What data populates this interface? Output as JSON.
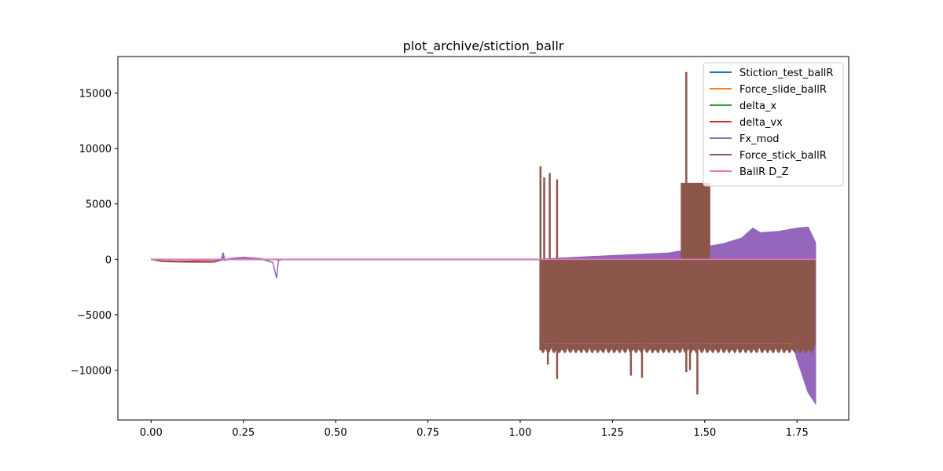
{
  "chart_data": {
    "type": "line",
    "title": "plot_archive/stiction_ballr",
    "xlabel": "",
    "ylabel": "",
    "xlim": [
      -0.09,
      1.89
    ],
    "ylim": [
      -14500,
      18300
    ],
    "xticks": [
      0.0,
      0.25,
      0.5,
      0.75,
      1.0,
      1.25,
      1.5,
      1.75
    ],
    "xtick_labels": [
      "0.00",
      "0.25",
      "0.50",
      "0.75",
      "1.00",
      "1.25",
      "1.50",
      "1.75"
    ],
    "yticks": [
      -10000,
      -5000,
      0,
      5000,
      10000,
      15000
    ],
    "ytick_labels": [
      "−10000",
      "−5000",
      "0",
      "5000",
      "10000",
      "15000"
    ],
    "legend_position": "top-right",
    "grid": false,
    "series": [
      {
        "name": "Stiction_test_ballR",
        "color": "#1f77b4",
        "x": [
          0.0,
          1.8
        ],
        "y": [
          0,
          0
        ]
      },
      {
        "name": "Force_slide_ballR",
        "color": "#ff7f0e",
        "x": [
          0.0,
          1.8
        ],
        "y": [
          0,
          0
        ]
      },
      {
        "name": "delta_x",
        "color": "#2ca02c",
        "x": [
          0.0,
          1.8
        ],
        "y": [
          0,
          0
        ]
      },
      {
        "name": "delta_vx",
        "color": "#d62728",
        "x": [
          0.0,
          0.03,
          0.08,
          0.12,
          0.17,
          0.2,
          1.8
        ],
        "y": [
          0,
          -150,
          -180,
          -160,
          -200,
          0,
          0
        ]
      },
      {
        "name": "Fx_mod",
        "color": "#9467bd",
        "x": [
          0.0,
          0.19,
          0.195,
          0.2,
          0.21,
          0.25,
          0.3,
          0.33,
          0.34,
          0.345,
          0.36,
          1.05,
          1.2,
          1.4,
          1.55,
          1.6,
          1.63,
          1.65,
          1.7,
          1.75,
          1.78,
          1.8
        ],
        "y": [
          0,
          -60,
          600,
          -80,
          50,
          180,
          50,
          -300,
          -1700,
          -100,
          0,
          0,
          250,
          550,
          1400,
          1900,
          2800,
          2400,
          2500,
          2800,
          2900,
          1500
        ],
        "lower": [
          0,
          -60,
          0,
          -80,
          0,
          0,
          0,
          -300,
          -1700,
          -100,
          0,
          0,
          -200,
          -300,
          -400,
          -500,
          -700,
          -1200,
          -2000,
          -9000,
          -12000,
          -13000
        ]
      },
      {
        "name": "Force_stick_ballR",
        "color": "#8c564b",
        "x": [
          0.0,
          0.03,
          0.1,
          0.17,
          0.2,
          1.05
        ],
        "y": [
          0,
          -200,
          -250,
          -250,
          0,
          0
        ],
        "band": {
          "x0": 1.052,
          "x1": 1.8,
          "top": 0,
          "bottom": -7600
        },
        "spikes_up": [
          {
            "x": 1.055,
            "y": 8400
          },
          {
            "x": 1.065,
            "y": 7400
          },
          {
            "x": 1.08,
            "y": 7800
          },
          {
            "x": 1.1,
            "y": 7200
          },
          {
            "x": 1.44,
            "y": 6900
          },
          {
            "x": 1.45,
            "y": 16900
          },
          {
            "x": 1.46,
            "y": 6900
          },
          {
            "x": 1.47,
            "y": 6900
          },
          {
            "x": 1.48,
            "y": 6900
          },
          {
            "x": 1.5,
            "y": 6800
          },
          {
            "x": 1.51,
            "y": 6800
          }
        ],
        "spikes_down": [
          {
            "x": 1.055,
            "y": -8000
          },
          {
            "x": 1.075,
            "y": -9500
          },
          {
            "x": 1.1,
            "y": -10800
          },
          {
            "x": 1.3,
            "y": -10500
          },
          {
            "x": 1.33,
            "y": -10700
          },
          {
            "x": 1.45,
            "y": -10200
          },
          {
            "x": 1.46,
            "y": -10000
          },
          {
            "x": 1.48,
            "y": -12200
          },
          {
            "x": 1.7,
            "y": -8000
          }
        ],
        "block": {
          "x0": 1.435,
          "x1": 1.515,
          "top": 6900,
          "bottom": 0
        }
      },
      {
        "name": "BallR D_Z",
        "color": "#e377c2",
        "x": [
          0.0,
          1.8
        ],
        "y": [
          0,
          0
        ]
      }
    ]
  }
}
